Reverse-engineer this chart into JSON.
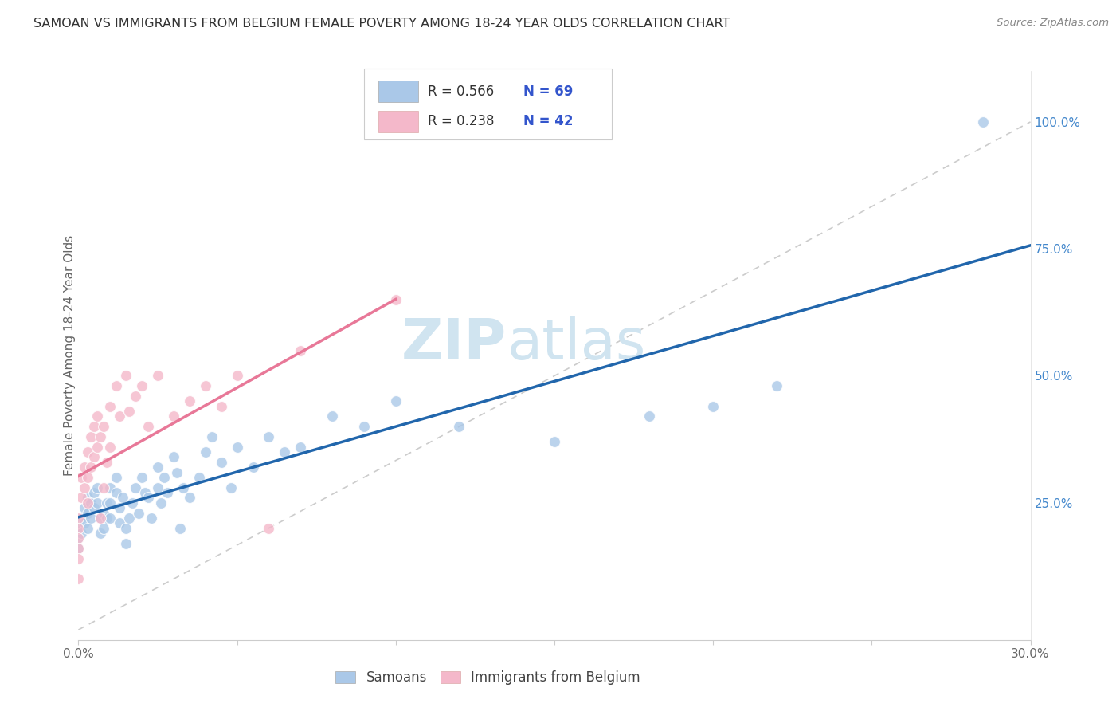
{
  "title": "SAMOAN VS IMMIGRANTS FROM BELGIUM FEMALE POVERTY AMONG 18-24 YEAR OLDS CORRELATION CHART",
  "source": "Source: ZipAtlas.com",
  "ylabel": "Female Poverty Among 18-24 Year Olds",
  "xlim": [
    0.0,
    0.3
  ],
  "ylim": [
    -0.02,
    1.1
  ],
  "background_color": "#ffffff",
  "grid_color": "#e8e8e8",
  "samoan_color": "#aac8e8",
  "belgium_color": "#f4b8ca",
  "samoan_line_color": "#2166ac",
  "belgium_line_color": "#e87898",
  "ref_line_color": "#cccccc",
  "title_color": "#333333",
  "source_color": "#888888",
  "tick_color": "#4488cc",
  "ylabel_color": "#666666",
  "watermark_color": "#d0e4f0",
  "samoan_x": [
    0.0,
    0.0,
    0.0,
    0.001,
    0.001,
    0.002,
    0.002,
    0.003,
    0.003,
    0.003,
    0.004,
    0.004,
    0.005,
    0.005,
    0.006,
    0.006,
    0.007,
    0.007,
    0.008,
    0.008,
    0.009,
    0.009,
    0.01,
    0.01,
    0.01,
    0.012,
    0.012,
    0.013,
    0.013,
    0.014,
    0.015,
    0.015,
    0.016,
    0.017,
    0.018,
    0.019,
    0.02,
    0.021,
    0.022,
    0.023,
    0.025,
    0.025,
    0.026,
    0.027,
    0.028,
    0.03,
    0.031,
    0.032,
    0.033,
    0.035,
    0.038,
    0.04,
    0.042,
    0.045,
    0.048,
    0.05,
    0.055,
    0.06,
    0.065,
    0.07,
    0.08,
    0.09,
    0.1,
    0.12,
    0.15,
    0.18,
    0.2,
    0.22,
    0.285
  ],
  "samoan_y": [
    0.2,
    0.18,
    0.16,
    0.22,
    0.19,
    0.24,
    0.21,
    0.26,
    0.23,
    0.2,
    0.25,
    0.22,
    0.27,
    0.24,
    0.28,
    0.25,
    0.22,
    0.19,
    0.23,
    0.2,
    0.25,
    0.22,
    0.28,
    0.25,
    0.22,
    0.3,
    0.27,
    0.24,
    0.21,
    0.26,
    0.2,
    0.17,
    0.22,
    0.25,
    0.28,
    0.23,
    0.3,
    0.27,
    0.26,
    0.22,
    0.32,
    0.28,
    0.25,
    0.3,
    0.27,
    0.34,
    0.31,
    0.2,
    0.28,
    0.26,
    0.3,
    0.35,
    0.38,
    0.33,
    0.28,
    0.36,
    0.32,
    0.38,
    0.35,
    0.36,
    0.42,
    0.4,
    0.45,
    0.4,
    0.37,
    0.42,
    0.44,
    0.48,
    1.0
  ],
  "belgium_x": [
    0.0,
    0.0,
    0.0,
    0.0,
    0.0,
    0.0,
    0.001,
    0.001,
    0.002,
    0.002,
    0.003,
    0.003,
    0.003,
    0.004,
    0.004,
    0.005,
    0.005,
    0.006,
    0.006,
    0.007,
    0.007,
    0.008,
    0.008,
    0.009,
    0.01,
    0.01,
    0.012,
    0.013,
    0.015,
    0.016,
    0.018,
    0.02,
    0.022,
    0.025,
    0.03,
    0.035,
    0.04,
    0.045,
    0.05,
    0.06,
    0.07,
    0.1
  ],
  "belgium_y": [
    0.22,
    0.2,
    0.18,
    0.16,
    0.14,
    0.1,
    0.3,
    0.26,
    0.32,
    0.28,
    0.35,
    0.3,
    0.25,
    0.38,
    0.32,
    0.4,
    0.34,
    0.42,
    0.36,
    0.38,
    0.22,
    0.4,
    0.28,
    0.33,
    0.44,
    0.36,
    0.48,
    0.42,
    0.5,
    0.43,
    0.46,
    0.48,
    0.4,
    0.5,
    0.42,
    0.45,
    0.48,
    0.44,
    0.5,
    0.2,
    0.55,
    0.65
  ]
}
